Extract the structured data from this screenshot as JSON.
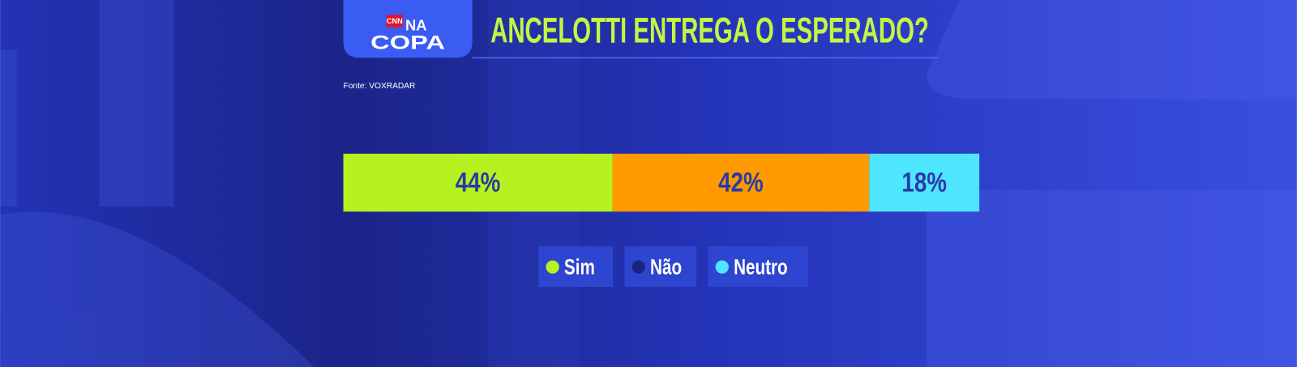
{
  "chart_data": {
    "type": "stacked-bar",
    "title": "ANCELOTTI ENTREGA O ESPERADO?",
    "source": "Fonte: VOXRADAR",
    "brand": {
      "network": "CNN",
      "na": "NA",
      "copa": "COPA"
    },
    "series": [
      {
        "name": "Sim",
        "color": "#b5f21f",
        "legend_color": "#b5f21f",
        "values": [
          44
        ],
        "value_labels": [
          "44%"
        ]
      },
      {
        "name": "Não",
        "color": "#ff9a00",
        "legend_color": "#1a2580",
        "values": [
          42
        ],
        "value_labels": [
          "42%"
        ]
      },
      {
        "name": "Neutro",
        "color": "#4ee6ff",
        "legend_color": "#4ee6ff",
        "values": [
          18
        ],
        "value_labels": [
          "18%"
        ]
      }
    ]
  }
}
